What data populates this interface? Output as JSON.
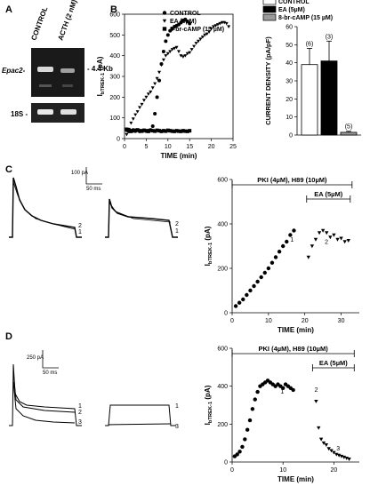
{
  "panels": {
    "a": {
      "letter": "A",
      "lanes": [
        "CONTROL",
        "ACTH (2 nM)"
      ],
      "band_epac": "Epac2-",
      "size_marker": "- 4.4 Kb",
      "band_18s": "18S -"
    },
    "b": {
      "letter": "B"
    },
    "c": {
      "letter": "C",
      "scale_y": "100 pA",
      "scale_x": "50 ms",
      "trace_labels": [
        "2",
        "1",
        "2",
        "1"
      ]
    },
    "d": {
      "letter": "D",
      "scale_y": "250 pA",
      "scale_x": "50 ms",
      "trace_labels": [
        "1",
        "2",
        "3",
        "1",
        "3"
      ]
    }
  },
  "chart_data": [
    {
      "id": "b-time",
      "type": "scatter",
      "xlabel": "TIME (min)",
      "ylabel": "I_bTREK-1 (pA)",
      "xlim": [
        0,
        25
      ],
      "ylim": [
        0,
        600
      ],
      "xticks": [
        0,
        5,
        10,
        15,
        20,
        25
      ],
      "yticks": [
        0,
        100,
        200,
        300,
        400,
        500,
        600
      ],
      "legend": [
        "CONTROL",
        "EA (5µM)",
        "8-br-cAMP (15 µM)"
      ],
      "series": [
        {
          "name": "CONTROL",
          "marker": "circle",
          "x": [
            0.5,
            1,
            1.5,
            2,
            2.5,
            3,
            3.5,
            4,
            4.5,
            5,
            5.5,
            6,
            6.5,
            7,
            7.5,
            8,
            8.5,
            9,
            9.5,
            10,
            10.5,
            11,
            11.5,
            12,
            12.5,
            13,
            13.5,
            14,
            14.5,
            15
          ],
          "y": [
            40,
            35,
            38,
            42,
            36,
            40,
            35,
            38,
            40,
            36,
            38,
            42,
            60,
            120,
            200,
            280,
            360,
            420,
            470,
            500,
            520,
            530,
            540,
            545,
            550,
            560,
            570,
            575,
            565,
            555
          ]
        },
        {
          "name": "EA (5µM)",
          "marker": "triangle-down",
          "x": [
            0.5,
            1,
            1.5,
            2,
            2.5,
            3,
            3.5,
            4,
            4.5,
            5,
            5.5,
            6,
            6.5,
            7,
            7.5,
            8,
            8.5,
            9,
            9.5,
            10,
            10.5,
            11,
            11.5,
            12,
            12.5,
            13,
            13.5,
            14,
            14.5,
            15,
            15.5,
            16,
            16.5,
            17,
            17.5,
            18,
            18.5,
            19,
            19.5,
            20,
            20.5,
            21,
            21.5,
            22,
            22.5,
            23,
            23.5,
            24
          ],
          "y": [
            20,
            45,
            75,
            95,
            115,
            130,
            150,
            165,
            185,
            200,
            215,
            225,
            245,
            265,
            290,
            320,
            355,
            380,
            400,
            410,
            420,
            430,
            435,
            440,
            420,
            400,
            395,
            400,
            410,
            415,
            430,
            445,
            460,
            470,
            480,
            490,
            500,
            505,
            515,
            530,
            540,
            545,
            550,
            555,
            560,
            560,
            555,
            540
          ]
        },
        {
          "name": "8-br-cAMP (15 µM)",
          "marker": "square",
          "x": [
            0.5,
            1,
            1.5,
            2,
            2.5,
            3,
            3.5,
            4,
            4.5,
            5,
            5.5,
            6,
            6.5,
            7,
            7.5,
            8,
            8.5,
            9,
            9.5,
            10,
            10.5,
            11,
            11.5,
            12,
            12.5,
            13,
            13.5,
            14,
            14.5,
            15
          ],
          "y": [
            45,
            40,
            35,
            38,
            40,
            42,
            38,
            36,
            40,
            38,
            35,
            40,
            38,
            36,
            40,
            38,
            35,
            38,
            36,
            40,
            38,
            36,
            35,
            38,
            36,
            35,
            38,
            36,
            35,
            38
          ]
        }
      ]
    },
    {
      "id": "b-bar",
      "type": "bar",
      "ylabel": "CURRENT DENSITY (pA/pF)",
      "ylim": [
        0,
        60
      ],
      "yticks": [
        0,
        10,
        20,
        30,
        40,
        50,
        60
      ],
      "legend": [
        "CONTROL",
        "EA (5µM)",
        "8-br-cAMP (15 µM)"
      ],
      "categories": [
        "CONTROL",
        "EA (5µM)",
        "8-br-cAMP (15 µM)"
      ],
      "values": [
        39,
        41,
        1.5
      ],
      "errors": [
        9,
        11,
        0.6
      ],
      "n_labels": [
        "(6)",
        "(3)",
        "(5)"
      ],
      "colors": [
        "#ffffff",
        "#000000",
        "#9a9a9a"
      ]
    },
    {
      "id": "c-time",
      "type": "scatter",
      "xlabel": "TIME (min)",
      "ylabel": "I_bTREK-1 (pA)",
      "xlim": [
        0,
        35
      ],
      "ylim": [
        0,
        600
      ],
      "xticks": [
        0,
        10,
        20,
        30
      ],
      "yticks": [
        0,
        200,
        400,
        600
      ],
      "annotations": [
        "PKI (4µM), H89 (10µM)",
        "EA (5µM)",
        "1",
        "2"
      ],
      "series": [
        {
          "name": "PKI/H89",
          "marker": "circle",
          "x": [
            1,
            2,
            3,
            4,
            5,
            6,
            7,
            8,
            9,
            10,
            11,
            12,
            13,
            14,
            15,
            16,
            17
          ],
          "y": [
            30,
            45,
            60,
            80,
            100,
            120,
            140,
            160,
            180,
            200,
            225,
            250,
            275,
            300,
            320,
            350,
            370
          ]
        },
        {
          "name": "EA",
          "marker": "triangle-down",
          "x": [
            21,
            22,
            23,
            24,
            25,
            26,
            27,
            28,
            29,
            30,
            31,
            32
          ],
          "y": [
            250,
            300,
            330,
            360,
            370,
            360,
            340,
            350,
            330,
            335,
            320,
            325
          ]
        }
      ]
    },
    {
      "id": "d-time",
      "type": "scatter",
      "xlabel": "TIME (min)",
      "ylabel": "I_bTREK-1 (pA)",
      "xlim": [
        0,
        25
      ],
      "ylim": [
        0,
        600
      ],
      "xticks": [
        0,
        10,
        20
      ],
      "yticks": [
        0,
        200,
        400,
        600
      ],
      "annotations": [
        "PKI (4µM), H89 (10µM)",
        "EA (5µM)",
        "1",
        "2",
        "3"
      ],
      "series": [
        {
          "name": "PKI/H89",
          "marker": "circle",
          "x": [
            0.5,
            1,
            1.5,
            2,
            2.5,
            3,
            3.5,
            4,
            4.5,
            5,
            5.5,
            6,
            6.5,
            7,
            7.5,
            8,
            8.5,
            9,
            9.5,
            10,
            10.5,
            11,
            11.5,
            12
          ],
          "y": [
            30,
            40,
            55,
            80,
            120,
            170,
            220,
            280,
            330,
            370,
            400,
            410,
            420,
            430,
            420,
            410,
            400,
            410,
            400,
            390,
            410,
            400,
            390,
            380
          ]
        },
        {
          "name": "EA",
          "marker": "triangle-down",
          "x": [
            16.5,
            17,
            17.5,
            18,
            18.5,
            19,
            19.5,
            20,
            20.5,
            21,
            21.5,
            22,
            22.5,
            23
          ],
          "y": [
            320,
            180,
            120,
            100,
            90,
            70,
            60,
            50,
            40,
            35,
            30,
            25,
            20,
            15
          ]
        }
      ]
    }
  ]
}
